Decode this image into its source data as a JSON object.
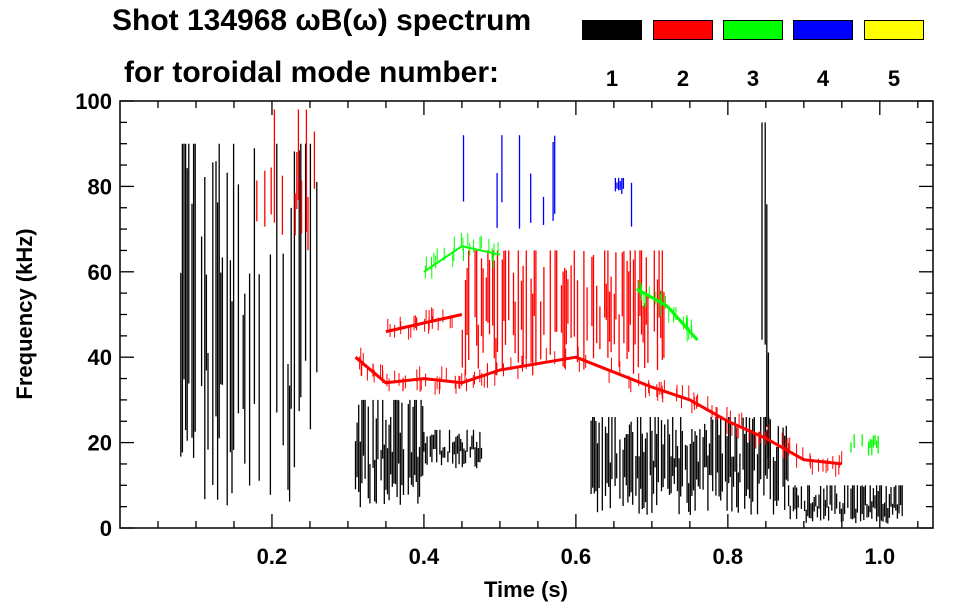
{
  "chart_data": {
    "type": "heatmap",
    "title_line1": "Shot 134968 ωB(ω) spectrum",
    "title_line2": "for toroidal mode number:",
    "xlabel": "Time (s)",
    "ylabel": "Frequency (kHz)",
    "xlim": [
      0.0,
      1.07
    ],
    "ylim": [
      0,
      100
    ],
    "xticks": [
      0.2,
      0.4,
      0.6,
      0.8,
      1.0
    ],
    "xtick_labels": [
      "0.2",
      "0.4",
      "0.6",
      "0.8",
      "1.0"
    ],
    "yticks": [
      0,
      20,
      40,
      60,
      80,
      100
    ],
    "ytick_labels": [
      "0",
      "20",
      "40",
      "60",
      "80",
      "100"
    ],
    "legend": [
      {
        "mode": "1",
        "color": "#000000"
      },
      {
        "mode": "2",
        "color": "#ff0000"
      },
      {
        "mode": "3",
        "color": "#00ff00"
      },
      {
        "mode": "4",
        "color": "#0000ff"
      },
      {
        "mode": "5",
        "color": "#ffff00"
      }
    ],
    "regions": [
      {
        "mode": "1",
        "kind": "burst",
        "t0": 0.08,
        "t1": 0.26,
        "f0": 5,
        "f1": 90,
        "density": 0.55
      },
      {
        "mode": "1",
        "kind": "burst",
        "t0": 0.31,
        "t1": 0.4,
        "f0": 4,
        "f1": 30,
        "density": 0.9
      },
      {
        "mode": "1",
        "kind": "burst",
        "t0": 0.4,
        "t1": 0.48,
        "f0": 14,
        "f1": 23,
        "density": 0.85
      },
      {
        "mode": "1",
        "kind": "burst",
        "t0": 0.62,
        "t1": 0.88,
        "f0": 3,
        "f1": 26,
        "density": 0.85
      },
      {
        "mode": "1",
        "kind": "burst",
        "t0": 0.88,
        "t1": 1.03,
        "f0": 1,
        "f1": 10,
        "density": 0.9
      },
      {
        "mode": "1",
        "kind": "burst",
        "t0": 0.845,
        "t1": 0.855,
        "f0": 5,
        "f1": 95,
        "density": 0.8
      },
      {
        "mode": "2",
        "kind": "curve",
        "t": [
          0.31,
          0.35,
          0.4,
          0.45,
          0.5,
          0.6,
          0.7,
          0.75,
          0.8,
          0.85,
          0.9,
          0.95
        ],
        "f": [
          40,
          34,
          35,
          34,
          37,
          40,
          33,
          30,
          25,
          21,
          16,
          15
        ],
        "width": 3
      },
      {
        "mode": "2",
        "kind": "burst",
        "t0": 0.44,
        "t1": 0.72,
        "f0": 35,
        "f1": 65,
        "density": 0.55
      },
      {
        "mode": "2",
        "kind": "curve",
        "t": [
          0.35,
          0.4,
          0.45
        ],
        "f": [
          46,
          48,
          50
        ],
        "width": 3
      },
      {
        "mode": "2",
        "kind": "burst",
        "t0": 0.18,
        "t1": 0.27,
        "f0": 65,
        "f1": 98,
        "density": 0.25
      },
      {
        "mode": "3",
        "kind": "curve",
        "t": [
          0.4,
          0.45,
          0.5
        ],
        "f": [
          60,
          66,
          64
        ],
        "width": 2
      },
      {
        "mode": "3",
        "kind": "curve",
        "t": [
          0.68,
          0.72,
          0.76
        ],
        "f": [
          56,
          52,
          44
        ],
        "width": 3
      },
      {
        "mode": "3",
        "kind": "burst",
        "t0": 0.96,
        "t1": 1.0,
        "f0": 17,
        "f1": 22,
        "density": 0.5
      },
      {
        "mode": "4",
        "kind": "burst",
        "t0": 0.45,
        "t1": 0.68,
        "f0": 68,
        "f1": 92,
        "density": 0.06
      },
      {
        "mode": "4",
        "kind": "burst",
        "t0": 0.652,
        "t1": 0.665,
        "f0": 78,
        "f1": 82,
        "density": 0.9
      }
    ]
  }
}
